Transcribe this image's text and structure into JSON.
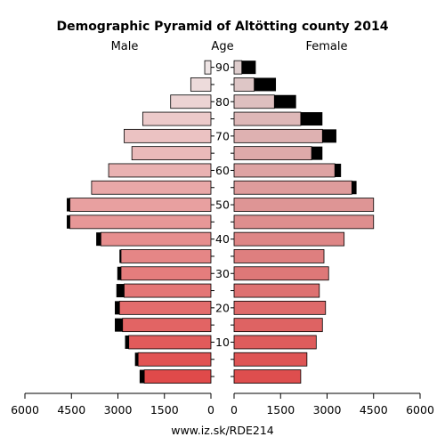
{
  "chart_data": {
    "type": "bar",
    "subtype": "population-pyramid",
    "title": "Demographic Pyramid of Altötting county 2014",
    "left_label": "Male",
    "center_label": "Age",
    "right_label": "Female",
    "x_ticks_left": [
      "6000",
      "4500",
      "3000",
      "1500",
      "0"
    ],
    "x_ticks_right": [
      "0",
      "1500",
      "3000",
      "4500",
      "6000"
    ],
    "xlim": [
      0,
      6000
    ],
    "age_ticks": [
      "10",
      "20",
      "30",
      "40",
      "50",
      "60",
      "70",
      "80",
      "90"
    ],
    "age_groups": [
      "0-4",
      "5-9",
      "10-14",
      "15-19",
      "20-24",
      "25-29",
      "30-34",
      "35-39",
      "40-44",
      "45-49",
      "50-54",
      "55-59",
      "60-64",
      "65-69",
      "70-74",
      "75-79",
      "80-84",
      "85-89",
      "90+"
    ],
    "series": [
      {
        "name": "Male",
        "values": [
          2150,
          2350,
          2650,
          2850,
          2950,
          2800,
          2900,
          2900,
          3550,
          4550,
          4550,
          3850,
          3300,
          2550,
          2800,
          2200,
          1300,
          650,
          200
        ],
        "excess": [
          150,
          100,
          120,
          250,
          150,
          250,
          120,
          50,
          150,
          100,
          100,
          0,
          0,
          0,
          0,
          0,
          0,
          0,
          0
        ]
      },
      {
        "name": "Female",
        "values": [
          2150,
          2350,
          2650,
          2850,
          2950,
          2750,
          3050,
          2900,
          3550,
          4500,
          4500,
          3800,
          3250,
          2500,
          2850,
          2150,
          1300,
          650,
          250
        ],
        "excess": [
          0,
          0,
          0,
          0,
          0,
          0,
          0,
          0,
          0,
          0,
          0,
          150,
          200,
          350,
          450,
          700,
          700,
          700,
          450
        ]
      }
    ],
    "footer": "www.iz.sk/RDE214"
  }
}
